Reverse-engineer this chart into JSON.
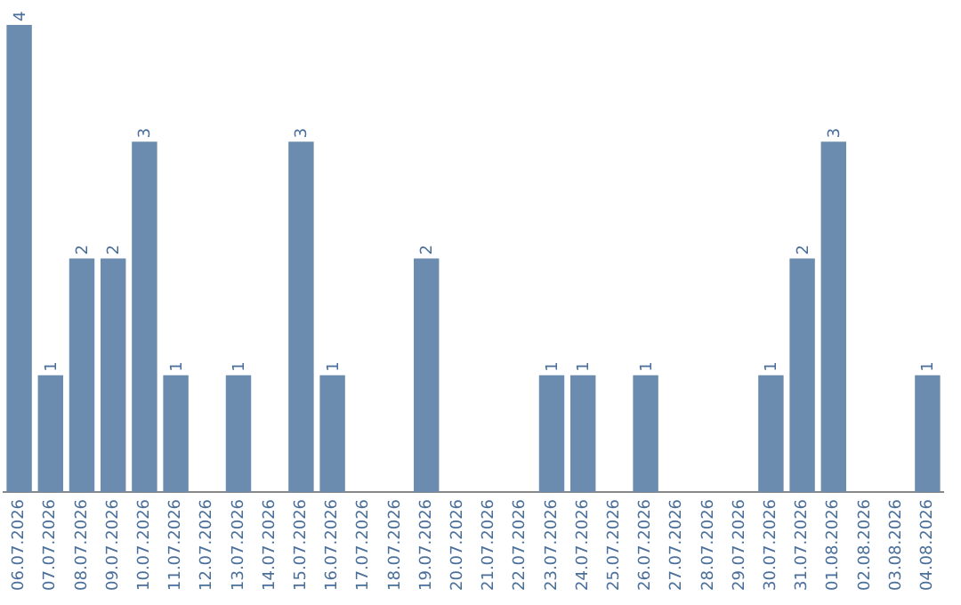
{
  "chart_data": {
    "type": "bar",
    "categories": [
      "06.07.2026",
      "07.07.2026",
      "08.07.2026",
      "09.07.2026",
      "10.07.2026",
      "11.07.2026",
      "12.07.2026",
      "13.07.2026",
      "14.07.2026",
      "15.07.2026",
      "16.07.2026",
      "17.07.2026",
      "18.07.2026",
      "19.07.2026",
      "20.07.2026",
      "21.07.2026",
      "22.07.2026",
      "23.07.2026",
      "24.07.2026",
      "25.07.2026",
      "26.07.2026",
      "27.07.2026",
      "28.07.2026",
      "29.07.2026",
      "30.07.2026",
      "31.07.2026",
      "01.08.2026",
      "02.08.2026",
      "03.08.2026",
      "04.08.2026"
    ],
    "values": [
      4,
      1,
      2,
      2,
      3,
      1,
      0,
      1,
      0,
      3,
      1,
      0,
      0,
      2,
      0,
      0,
      0,
      1,
      1,
      0,
      1,
      0,
      0,
      0,
      1,
      2,
      3,
      0,
      0,
      1
    ],
    "value_labels": [
      "4",
      "1",
      "2",
      "2",
      "3",
      "1",
      null,
      "1",
      null,
      "3",
      "1",
      null,
      null,
      "2",
      null,
      null,
      null,
      "1",
      "1",
      null,
      "1",
      null,
      null,
      null,
      "1",
      "2",
      "3",
      null,
      null,
      "1"
    ],
    "color": "#6b8cae",
    "grid": false,
    "legend": false
  }
}
